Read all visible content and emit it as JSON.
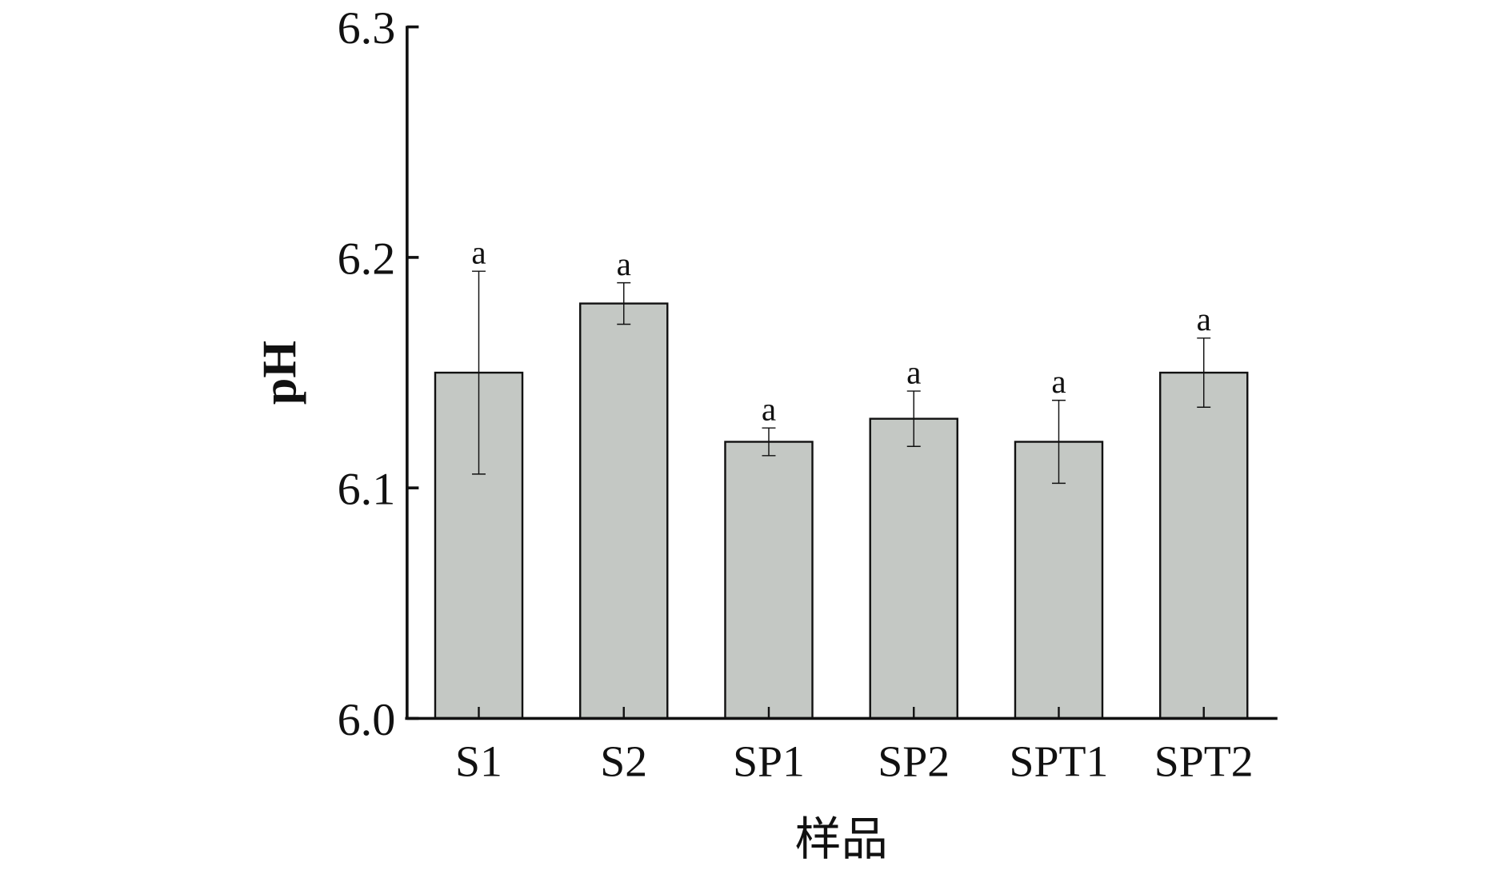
{
  "chart_data": {
    "type": "bar",
    "title": "",
    "xlabel": "样品",
    "ylabel": "pH",
    "categories": [
      "S1",
      "S2",
      "SP1",
      "SP2",
      "SPT1",
      "SPT2"
    ],
    "values": [
      6.15,
      6.18,
      6.12,
      6.13,
      6.12,
      6.15
    ],
    "errors": [
      0.044,
      0.009,
      0.006,
      0.012,
      0.018,
      0.015
    ],
    "significance_labels": [
      "a",
      "a",
      "a",
      "a",
      "a",
      "a"
    ],
    "ylim": [
      6.0,
      6.3
    ],
    "yticks": [
      "6.0",
      "6.1",
      "6.2",
      "6.3"
    ],
    "grid": false,
    "colors": {
      "bar": "#c4c8c4",
      "edge": "#111111"
    }
  }
}
